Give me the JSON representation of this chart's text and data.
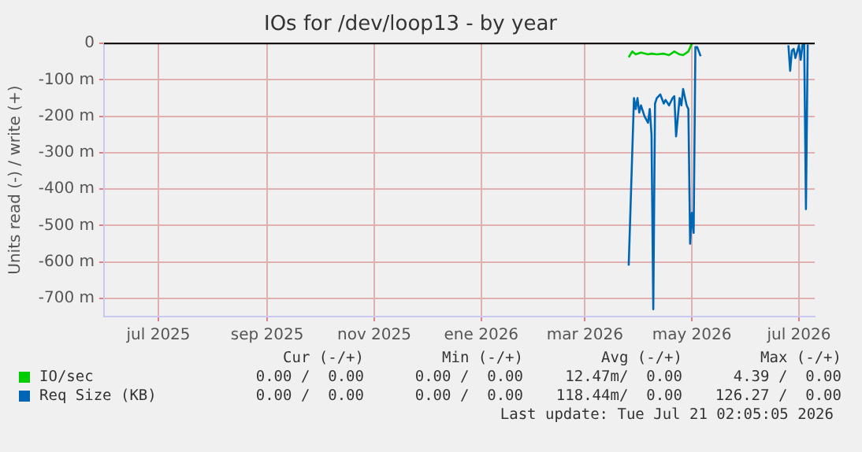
{
  "chart_data": {
    "type": "line",
    "title": "IOs for /dev/loop13 - by year",
    "ylabel": "Units read (-) / write (+)",
    "xlim": [
      "2025-05-31",
      "2026-07-10"
    ],
    "xticks": [
      {
        "value": "2025-07-01",
        "label": "jul 2025"
      },
      {
        "value": "2025-09-01",
        "label": "sep 2025"
      },
      {
        "value": "2025-11-01",
        "label": "nov 2025"
      },
      {
        "value": "2026-01-01",
        "label": "ene 2026"
      },
      {
        "value": "2026-03-01",
        "label": "mar 2026"
      },
      {
        "value": "2026-05-01",
        "label": "may 2026"
      },
      {
        "value": "2026-07-01",
        "label": "jul 2026"
      }
    ],
    "ylim": [
      -750,
      0
    ],
    "yticks": [
      {
        "value": -700,
        "label": "-700 m"
      },
      {
        "value": -600,
        "label": "-600 m"
      },
      {
        "value": -500,
        "label": "-500 m"
      },
      {
        "value": -400,
        "label": "-400 m"
      },
      {
        "value": -300,
        "label": "-300 m"
      },
      {
        "value": -200,
        "label": "-200 m"
      },
      {
        "value": -100,
        "label": "-100 m"
      },
      0
    ],
    "grid": true,
    "legend": "bottom",
    "line_style": "solid",
    "marker": "none",
    "ref_lines": [
      {
        "axis": "y",
        "value": 0,
        "label": null,
        "color": "#000000"
      }
    ],
    "series": [
      {
        "name": "IO/sec",
        "color": "#00cc00",
        "x": [
          "2026-03-26",
          "2026-03-28",
          "2026-03-30",
          "2026-04-02",
          "2026-04-06",
          "2026-04-08",
          "2026-04-11",
          "2026-04-15",
          "2026-04-18",
          "2026-04-21",
          "2026-04-24",
          "2026-04-26",
          "2026-04-29",
          "2026-05-01"
        ],
        "values": [
          -38,
          -22,
          -30,
          -25,
          -30,
          -28,
          -30,
          -28,
          -32,
          -22,
          -30,
          -32,
          -22,
          0
        ]
      },
      {
        "name": "Req Size (KB)",
        "color": "#0066b3",
        "x": [
          "2026-03-26",
          "2026-03-29",
          "2026-03-30",
          "2026-03-31",
          "2026-04-01",
          "2026-04-02",
          "2026-04-04",
          "2026-04-06",
          "2026-04-07",
          "2026-04-08",
          "2026-04-09",
          "2026-04-10",
          "2026-04-11",
          "2026-04-13",
          "2026-04-15",
          "2026-04-16",
          "2026-04-18",
          "2026-04-20",
          "2026-04-21",
          "2026-04-22",
          "2026-04-24",
          "2026-04-25",
          "2026-04-26",
          "2026-04-28",
          "2026-04-29",
          "2026-04-30",
          "2026-05-01",
          "2026-05-02",
          "2026-05-03",
          "2026-05-04",
          "2026-05-06",
          "2026-05-20",
          "2026-06-25",
          "2026-06-26",
          "2026-06-27",
          "2026-06-28",
          "2026-06-29",
          "2026-07-01",
          "2026-07-02",
          "2026-07-03",
          "2026-07-04",
          "2026-07-05",
          "2026-07-06"
        ],
        "values": [
          -610,
          -150,
          -180,
          -150,
          -190,
          -170,
          -200,
          -218,
          -180,
          -250,
          -730,
          -165,
          -150,
          -140,
          -165,
          -155,
          -170,
          -150,
          -145,
          -255,
          -150,
          -170,
          -125,
          -170,
          -180,
          -550,
          -465,
          -520,
          -10,
          -10,
          -35,
          null,
          -5,
          -75,
          -20,
          -15,
          -40,
          -5,
          -45,
          -5,
          -3,
          -455,
          -3
        ]
      }
    ],
    "annotations": [
      "Cur (-/+)",
      "Min (-/+)",
      "Avg (-/+)",
      "Max (-/+)",
      "0.00 /  0.00",
      "0.00 /  0.00",
      "12.47m/  0.00",
      "4.39 /  0.00",
      "0.00 /  0.00",
      "0.00 /  0.00",
      "118.44m/  0.00",
      "126.27 /  0.00",
      "Last update: Tue Jul 21 02:05:05 2026"
    ]
  }
}
